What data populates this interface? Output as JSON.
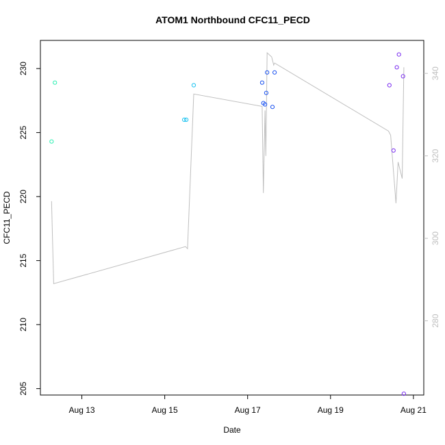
{
  "chart_data": {
    "type": "scatter",
    "title": "ATOM1 Northbound CFC11_PECD",
    "xlabel": "Date",
    "ylabel": "CFC11_PECD",
    "x_ticks": [
      {
        "label": "Aug 13",
        "day": 13
      },
      {
        "label": "Aug 15",
        "day": 15
      },
      {
        "label": "Aug 17",
        "day": 17
      },
      {
        "label": "Aug 19",
        "day": 19
      },
      {
        "label": "Aug 21",
        "day": 21
      }
    ],
    "xlim_days": [
      12.0,
      21.25
    ],
    "ylim": [
      204.5,
      232.2
    ],
    "y_ticks": [
      205,
      210,
      215,
      220,
      225,
      230
    ],
    "grid": false,
    "points_series": {
      "name": "",
      "points": [
        {
          "x": 12.27,
          "y": 224.3,
          "color": "#2bf0b2"
        },
        {
          "x": 12.35,
          "y": 228.9,
          "color": "#2bf0b2"
        },
        {
          "x": 15.47,
          "y": 226.0,
          "color": "#19c2f0"
        },
        {
          "x": 15.52,
          "y": 226.0,
          "color": "#19c2f0"
        },
        {
          "x": 15.7,
          "y": 228.7,
          "color": "#19c2f0"
        },
        {
          "x": 17.35,
          "y": 228.9,
          "color": "#1a52f0"
        },
        {
          "x": 17.38,
          "y": 227.3,
          "color": "#1a52f0"
        },
        {
          "x": 17.42,
          "y": 227.2,
          "color": "#1a52f0"
        },
        {
          "x": 17.45,
          "y": 228.1,
          "color": "#1a52f0"
        },
        {
          "x": 17.47,
          "y": 229.7,
          "color": "#1a52f0"
        },
        {
          "x": 17.6,
          "y": 227.0,
          "color": "#1a52f0"
        },
        {
          "x": 17.65,
          "y": 229.7,
          "color": "#1a52f0"
        },
        {
          "x": 20.42,
          "y": 228.7,
          "color": "#7a2cf0"
        },
        {
          "x": 20.52,
          "y": 223.6,
          "color": "#7a2cf0"
        },
        {
          "x": 20.6,
          "y": 230.1,
          "color": "#7a2cf0"
        },
        {
          "x": 20.65,
          "y": 231.1,
          "color": "#7a2cf0"
        },
        {
          "x": 20.75,
          "y": 229.4,
          "color": "#7a2cf0"
        },
        {
          "x": 20.77,
          "y": 204.6,
          "color": "#7a2cf0"
        }
      ]
    },
    "line_series": {
      "name": "",
      "color": "#bebebe",
      "axis": "right",
      "ylim": [
        262,
        348
      ],
      "y_ticks": [
        280,
        300,
        320,
        340
      ],
      "points": [
        {
          "x": 12.27,
          "y": 309.0
        },
        {
          "x": 12.32,
          "y": 289.0
        },
        {
          "x": 15.5,
          "y": 298.0
        },
        {
          "x": 15.55,
          "y": 297.5
        },
        {
          "x": 15.7,
          "y": 335.0
        },
        {
          "x": 17.35,
          "y": 332.0
        },
        {
          "x": 17.38,
          "y": 311.0
        },
        {
          "x": 17.42,
          "y": 331.0
        },
        {
          "x": 17.44,
          "y": 320.0
        },
        {
          "x": 17.47,
          "y": 345.0
        },
        {
          "x": 17.58,
          "y": 344.0
        },
        {
          "x": 17.63,
          "y": 342.0
        },
        {
          "x": 17.65,
          "y": 342.5
        },
        {
          "x": 20.4,
          "y": 326.0
        },
        {
          "x": 20.45,
          "y": 325.0
        },
        {
          "x": 20.58,
          "y": 308.5
        },
        {
          "x": 20.63,
          "y": 318.5
        },
        {
          "x": 20.73,
          "y": 314.5
        },
        {
          "x": 20.77,
          "y": 341.5
        }
      ]
    },
    "right_axis_color": "#bebebe"
  }
}
